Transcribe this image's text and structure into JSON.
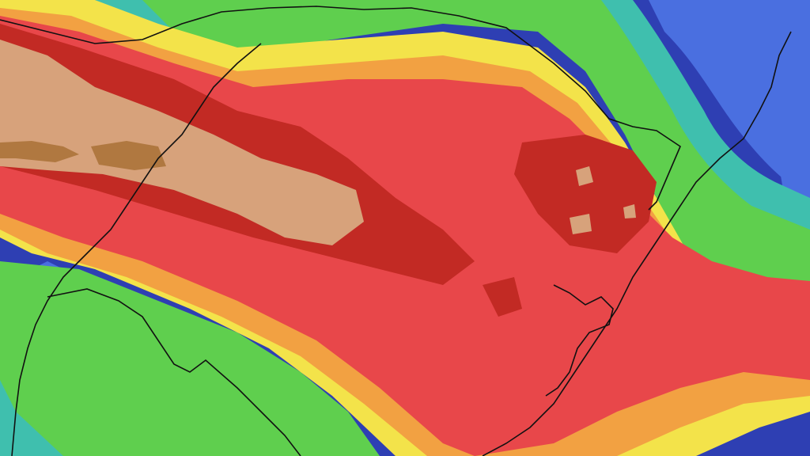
{
  "map": {
    "type": "precipitation-contour-map",
    "colors": {
      "brown_dark": "#b07840",
      "brown_light": "#d7a27b",
      "red_dark": "#c22a24",
      "red": "#e8474a",
      "orange": "#f2a142",
      "yellow": "#f3e34a",
      "green": "#5fcf4e",
      "green_light": "#7fdd70",
      "teal": "#3fbfae",
      "blue": "#4a6fe0",
      "navy": "#2e3fb3",
      "boundary": "#111111"
    },
    "layers": [
      "navy",
      "blue",
      "teal",
      "green",
      "yellow",
      "orange",
      "red",
      "red_dark",
      "brown_light",
      "brown_dark"
    ],
    "boundaries": [
      "state-border-line",
      "coastline"
    ]
  }
}
